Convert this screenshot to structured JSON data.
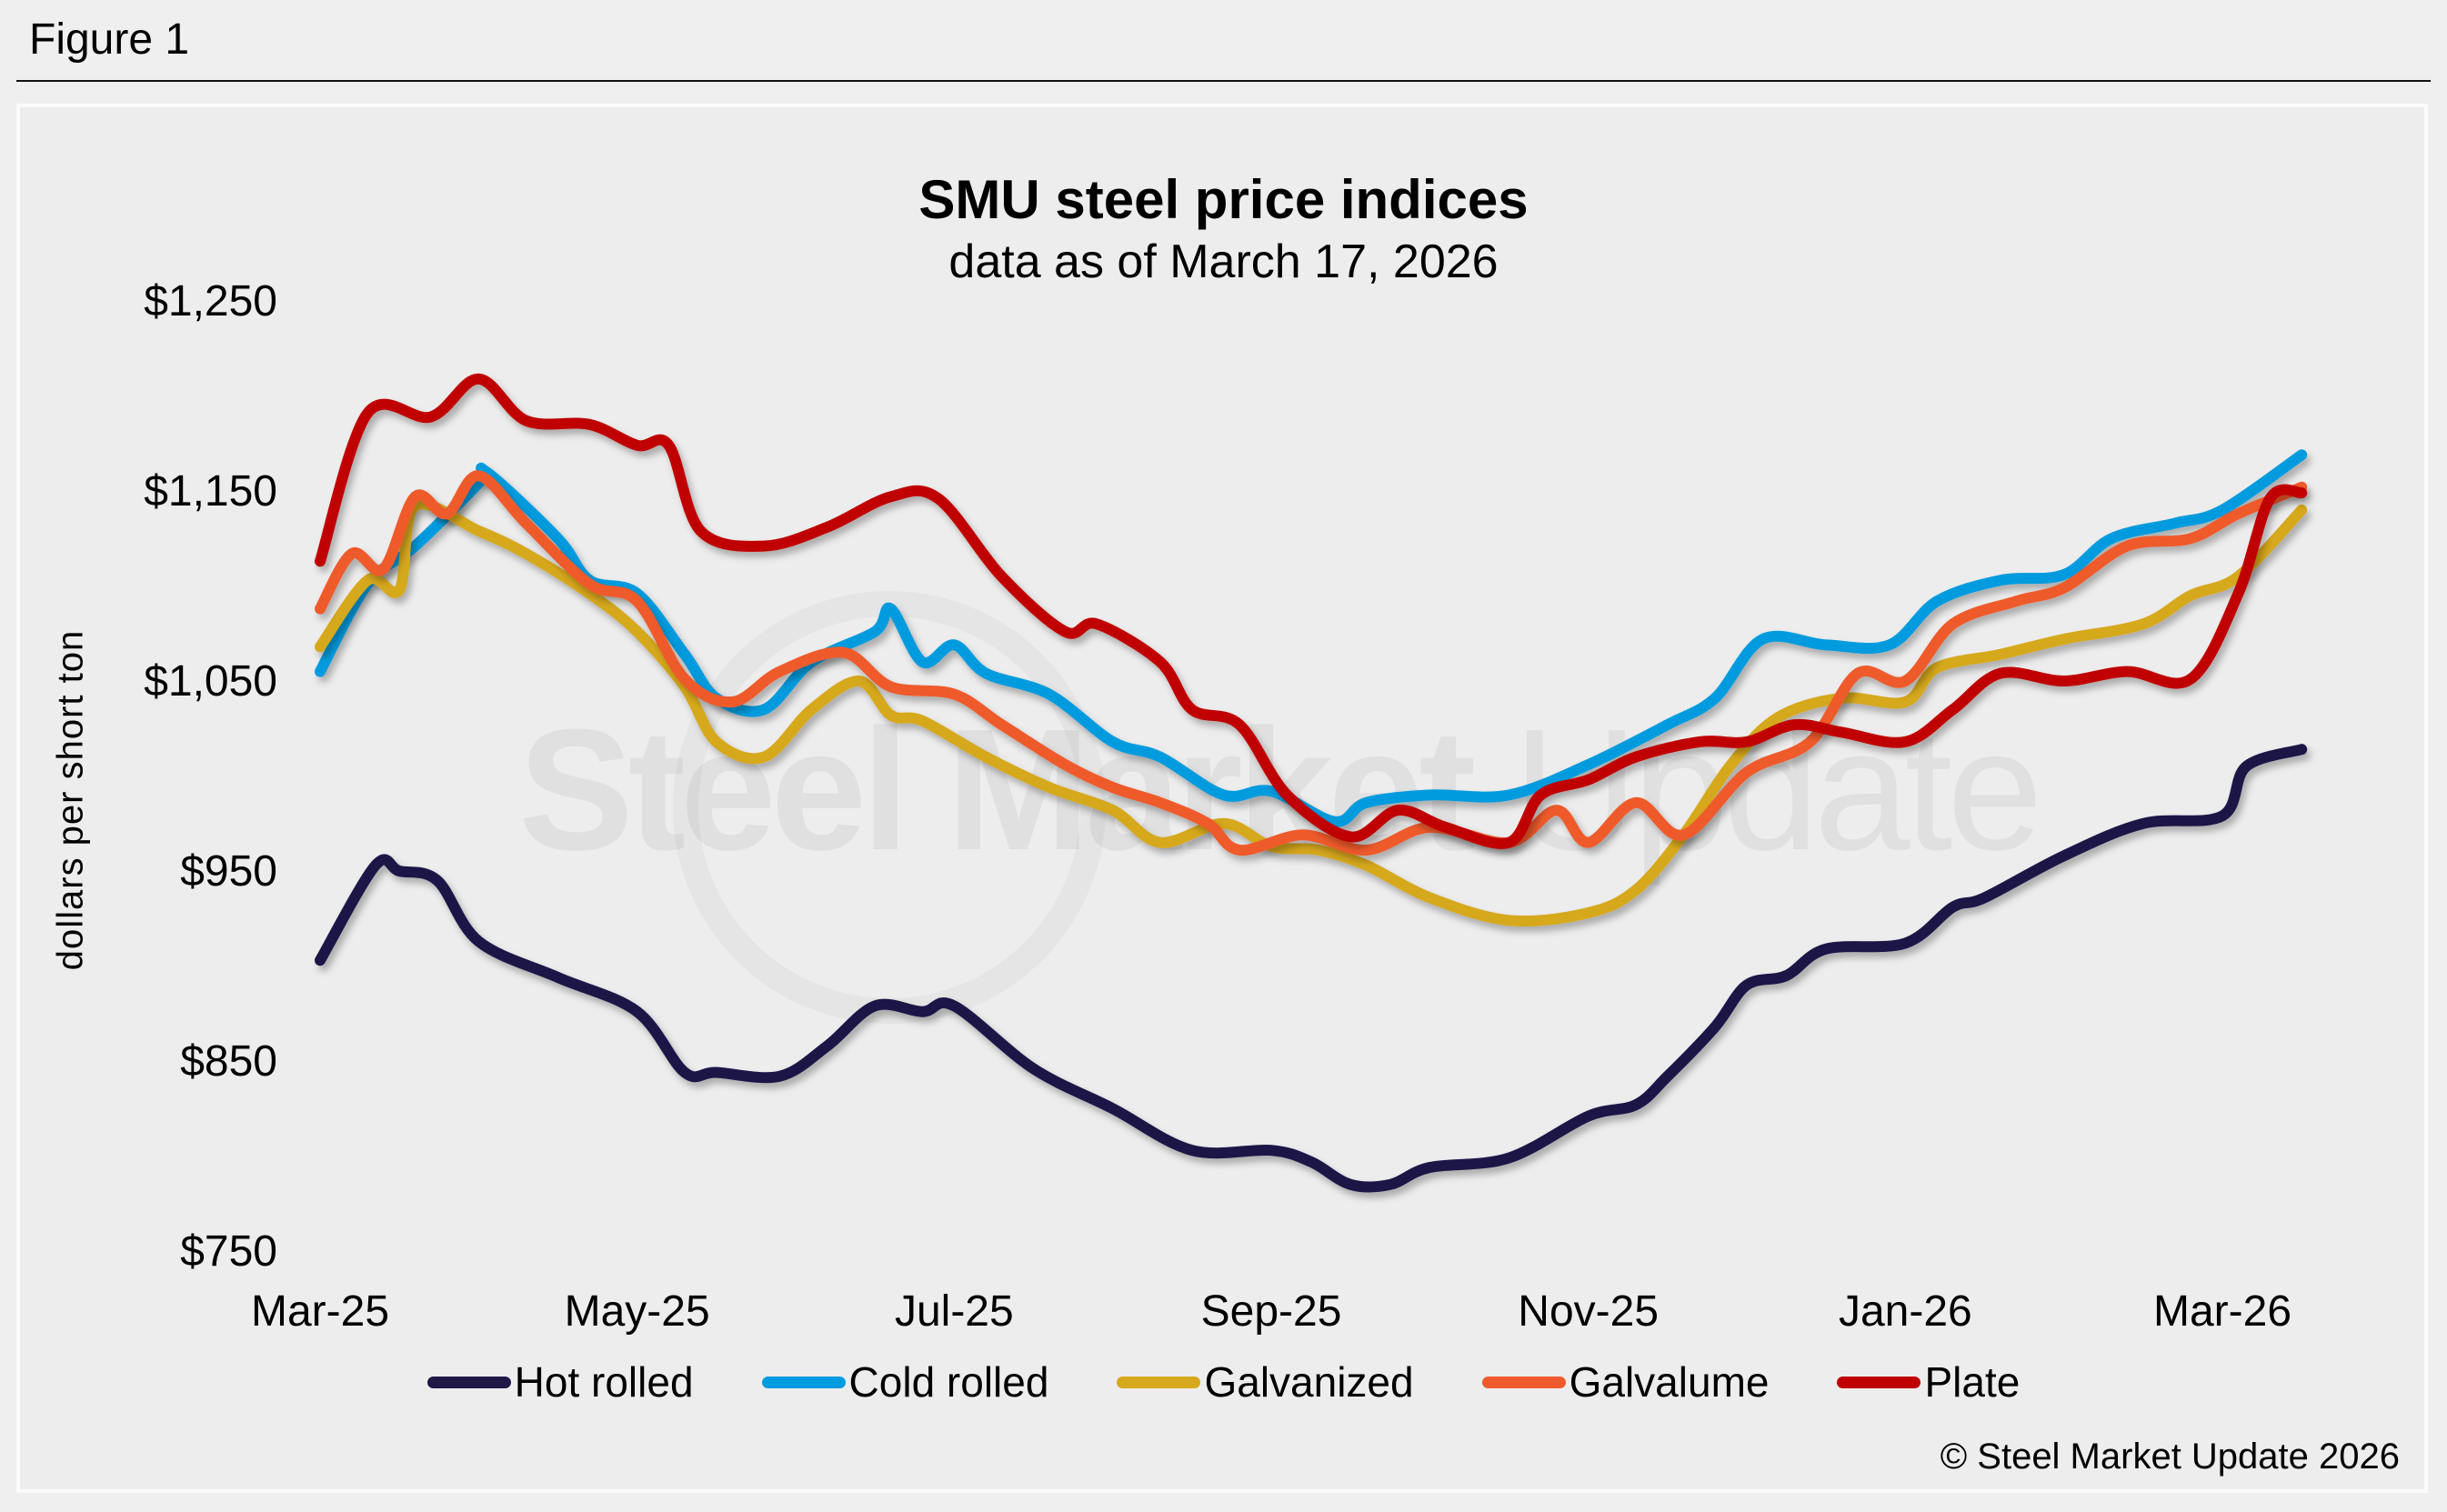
{
  "figure_label": "Figure 1",
  "copyright": "© Steel Market Update 2026",
  "watermark": {
    "bold": "Steel Market",
    "light": "Update"
  },
  "chart_data": {
    "type": "line",
    "title": "SMU steel price indices",
    "subtitle": "data as of March 17, 2026",
    "xlabel": "",
    "ylabel": "dollars per short ton",
    "x_unit": "months since Mar-25",
    "xlim": [
      0,
      12.5
    ],
    "x_ticks": [
      0,
      2,
      4,
      6,
      8,
      10,
      12
    ],
    "x_tick_labels": [
      "Mar-25",
      "May-25",
      "Jul-25",
      "Sep-25",
      "Nov-25",
      "Jan-26",
      "Mar-26"
    ],
    "ylim": [
      750,
      1250
    ],
    "y_ticks": [
      750,
      850,
      950,
      1050,
      1150,
      1250
    ],
    "y_tick_labels": [
      "$750",
      "$850",
      "$950",
      "$1,050",
      "$1,150",
      "$1,250"
    ],
    "grid": false,
    "legend_position": "bottom",
    "series": [
      {
        "name": "Hot rolled",
        "color": "#1f1847",
        "x": [
          0,
          0.35,
          0.5,
          0.74,
          1.0,
          1.5,
          2.0,
          2.3,
          2.5,
          2.9,
          3.2,
          3.5,
          3.8,
          4.0,
          4.5,
          5.0,
          5.5,
          6.0,
          6.25,
          6.5,
          6.75,
          7.0,
          7.5,
          8.0,
          8.3,
          8.5,
          8.8,
          9.0,
          9.25,
          9.5,
          10.0,
          10.3,
          10.5,
          11.0,
          11.5,
          12.0,
          12.15,
          12.5
        ],
        "values": [
          903,
          953,
          950,
          945,
          913,
          894,
          876,
          844,
          844,
          842,
          858,
          879,
          876,
          879,
          846,
          825,
          803,
          803,
          797,
          785,
          785,
          794,
          799,
          821,
          827,
          842,
          868,
          890,
          895,
          909,
          912,
          931,
          936,
          958,
          975,
          979,
          1005,
          1014
        ]
      },
      {
        "name": "Cold rolled",
        "color": "#009bde",
        "x": [
          0,
          0.3,
          0.6,
          1.0,
          1.05,
          1.5,
          1.7,
          2.0,
          2.3,
          2.5,
          2.8,
          3.1,
          3.5,
          3.6,
          3.8,
          4.0,
          4.2,
          4.6,
          5.0,
          5.3,
          5.7,
          6.0,
          6.4,
          6.6,
          7.0,
          7.5,
          8.0,
          8.5,
          8.8,
          9.1,
          9.5,
          9.9,
          10.2,
          10.6,
          11.0,
          11.3,
          11.7,
          12.0,
          12.5
        ],
        "values": [
          1055,
          1101,
          1121,
          1154,
          1160,
          1125,
          1103,
          1096,
          1064,
          1041,
          1035,
          1060,
          1076,
          1088,
          1060,
          1069,
          1054,
          1043,
          1018,
          1010,
          990,
          992,
          976,
          986,
          990,
          990,
          1006,
          1027,
          1041,
          1072,
          1069,
          1069,
          1092,
          1103,
          1106,
          1125,
          1133,
          1140,
          1169
        ]
      },
      {
        "name": "Galvanized",
        "color": "#d6a81b",
        "x": [
          0,
          0.3,
          0.5,
          0.6,
          1.0,
          1.3,
          1.7,
          2.0,
          2.3,
          2.5,
          2.8,
          3.1,
          3.4,
          3.6,
          3.8,
          4.2,
          4.6,
          5.0,
          5.3,
          5.7,
          6.0,
          6.3,
          6.6,
          7.0,
          7.5,
          8.0,
          8.3,
          8.6,
          8.9,
          9.2,
          9.6,
          10.0,
          10.2,
          10.6,
          11.0,
          11.5,
          11.8,
          12.1,
          12.5
        ],
        "values": [
          1068,
          1103,
          1098,
          1142,
          1129,
          1117,
          1096,
          1076,
          1047,
          1018,
          1010,
          1035,
          1050,
          1032,
          1029,
          1010,
          994,
          982,
          965,
          975,
          963,
          961,
          953,
          936,
          924,
          928,
          940,
          969,
          1006,
          1031,
          1041,
          1039,
          1057,
          1064,
          1072,
          1080,
          1095,
          1105,
          1140
        ]
      },
      {
        "name": "Galvalume",
        "color": "#ef5a2c",
        "x": [
          0,
          0.2,
          0.4,
          0.6,
          0.8,
          1.0,
          1.3,
          1.7,
          2.0,
          2.3,
          2.6,
          2.9,
          3.3,
          3.6,
          4.0,
          4.3,
          4.7,
          5.0,
          5.3,
          5.6,
          5.8,
          6.2,
          6.6,
          7.0,
          7.5,
          7.8,
          8.0,
          8.3,
          8.6,
          9.0,
          9.4,
          9.7,
          10.0,
          10.3,
          10.7,
          11.0,
          11.4,
          11.8,
          12.1,
          12.5
        ],
        "values": [
          1088,
          1117,
          1109,
          1147,
          1138,
          1158,
          1133,
          1101,
          1092,
          1051,
          1039,
          1055,
          1065,
          1047,
          1043,
          1027,
          1006,
          994,
          986,
          975,
          961,
          969,
          961,
          973,
          965,
          982,
          965,
          986,
          969,
          1002,
          1018,
          1054,
          1050,
          1080,
          1092,
          1099,
          1121,
          1125,
          1138,
          1152
        ]
      },
      {
        "name": "Plate",
        "color": "#c00000",
        "x": [
          0,
          0.3,
          0.7,
          1.0,
          1.3,
          1.7,
          2.0,
          2.2,
          2.4,
          2.8,
          3.2,
          3.6,
          3.9,
          4.3,
          4.7,
          4.9,
          5.3,
          5.5,
          5.8,
          6.1,
          6.5,
          6.8,
          7.1,
          7.5,
          7.7,
          8.0,
          8.3,
          8.7,
          9.0,
          9.3,
          9.6,
          10.0,
          10.3,
          10.6,
          11.0,
          11.4,
          11.8,
          12.1,
          12.3,
          12.5
        ],
        "values": [
          1113,
          1191,
          1189,
          1209,
          1187,
          1185,
          1174,
          1174,
          1129,
          1121,
          1131,
          1147,
          1146,
          1105,
          1076,
          1080,
          1060,
          1035,
          1027,
          990,
          968,
          982,
          973,
          965,
          990,
          998,
          1010,
          1018,
          1018,
          1027,
          1023,
          1018,
          1035,
          1054,
          1050,
          1055,
          1051,
          1096,
          1146,
          1149
        ]
      }
    ]
  }
}
